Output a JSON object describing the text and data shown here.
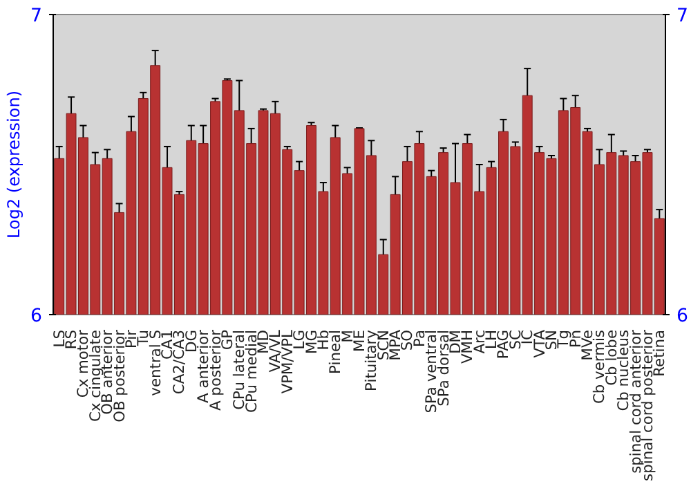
{
  "chart_data": {
    "type": "bar",
    "ylabel": "Log2 (expression)",
    "categories": [
      "LS",
      "RS",
      "Cx motor",
      "Cx cingulate",
      "OB anterior",
      "OB posterior",
      "Pir",
      "Tu",
      "ventral S",
      "CA1",
      "CA2/CA3",
      "DG",
      "A anterior",
      "A posterior",
      "GP",
      "CPu lateral",
      "CPu medial",
      "MD",
      "VA/VL",
      "VPM/VPL",
      "LG",
      "MG",
      "Hb",
      "Pineal",
      "M",
      "ME",
      "Pituitary",
      "SCN",
      "MPA",
      "SO",
      "Pa",
      "SPa ventral",
      "SPa dorsal",
      "DM",
      "VMH",
      "Arc",
      "LH",
      "PAG",
      "SC",
      "IC",
      "VTA",
      "SN",
      "Tg",
      "Pn",
      "MVe",
      "Cb vermis",
      "Cb lobe",
      "Cb nucleus",
      "spinal cord anterior",
      "spinal cord posterior",
      "Retina"
    ],
    "values": [
      6.52,
      6.67,
      6.59,
      6.5,
      6.52,
      6.34,
      6.61,
      6.72,
      6.83,
      6.49,
      6.4,
      6.58,
      6.57,
      6.71,
      6.78,
      6.68,
      6.57,
      6.68,
      6.67,
      6.55,
      6.48,
      6.63,
      6.41,
      6.59,
      6.47,
      6.62,
      6.53,
      6.2,
      6.4,
      6.51,
      6.57,
      6.46,
      6.54,
      6.44,
      6.57,
      6.41,
      6.49,
      6.61,
      6.56,
      6.73,
      6.54,
      6.52,
      6.68,
      6.69,
      6.61,
      6.5,
      6.54,
      6.53,
      6.51,
      6.54,
      6.32
    ],
    "errors": [
      0.04,
      0.055,
      0.04,
      0.04,
      0.03,
      0.03,
      0.05,
      0.02,
      0.05,
      0.07,
      0.01,
      0.05,
      0.06,
      0.01,
      0.005,
      0.1,
      0.05,
      0.005,
      0.04,
      0.01,
      0.03,
      0.01,
      0.03,
      0.04,
      0.02,
      0.002,
      0.05,
      0.05,
      0.06,
      0.05,
      0.04,
      0.02,
      0.015,
      0.13,
      0.03,
      0.09,
      0.02,
      0.04,
      0.015,
      0.09,
      0.02,
      0.01,
      0.04,
      0.04,
      0.01,
      0.05,
      0.06,
      0.015,
      0.02,
      0.01,
      0.03
    ],
    "color": "#b83232",
    "ylim": [
      6,
      7
    ],
    "yticks": [
      6,
      7
    ],
    "y2lim": [
      6,
      7
    ],
    "y2ticks": [
      6,
      7
    ],
    "grid": false
  }
}
